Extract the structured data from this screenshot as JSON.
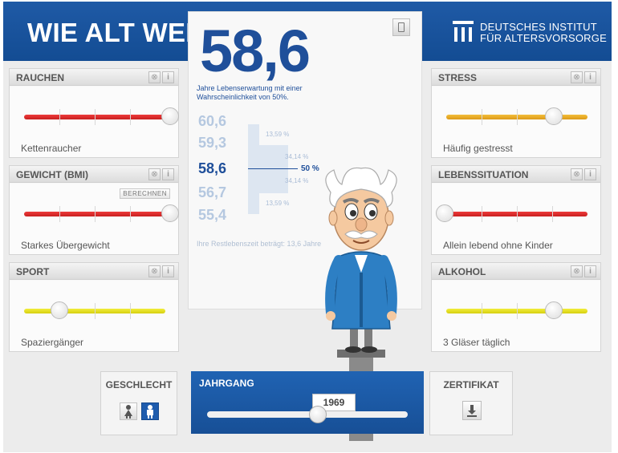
{
  "header": {
    "title": "WIE ALT WERDEN SIE?",
    "org_line1": "DEUTSCHES INSTITUT",
    "org_line2": "FÜR ALTERSVORSORGE",
    "logo_icon": "dia-logo-icon"
  },
  "panels": {
    "rauchen": {
      "title": "RAUCHEN",
      "value": "Kettenraucher",
      "level": 1.0,
      "color": "#dd2e2e"
    },
    "gewicht": {
      "title": "GEWICHT (BMI)",
      "value": "Starkes Übergewicht",
      "level": 1.0,
      "color": "#dd2e2e",
      "calc_label": "BERECHNEN"
    },
    "sport": {
      "title": "SPORT",
      "value": "Spaziergänger",
      "level": 0.25,
      "color": "#e8e322"
    },
    "stress": {
      "title": "STRESS",
      "value": "Häufig gestresst",
      "level": 0.85,
      "color": "#eab02e"
    },
    "lebenssituation": {
      "title": "LEBENSSITUATION",
      "value": "Allein lebend ohne Kinder",
      "level": 0.0,
      "color": "#dd2e2e"
    },
    "alkohol": {
      "title": "ALKOHOL",
      "value": "3 Gläser täglich",
      "level": 0.85,
      "color": "#e8e322"
    }
  },
  "center": {
    "life_expectancy": "58,6",
    "description": "Jahre Lebenserwartung mit einer Wahrscheinlichkeit von 50%.",
    "distribution": [
      {
        "age": "60,6",
        "pct": "13,59 %"
      },
      {
        "age": "59,3",
        "pct": "34,14 %"
      },
      {
        "age": "58,6",
        "pct": "50 %"
      },
      {
        "age": "56,7",
        "pct": "34,14 %"
      },
      {
        "age": "55,4",
        "pct": "13,59 %"
      }
    ],
    "remaining": "Ihre Restlebenszeit beträgt: 13,6 Jahre"
  },
  "bottom": {
    "geschlecht_label": "GESCHLECHT",
    "jahrgang_label": "JAHRGANG",
    "jahrgang_value": "1969",
    "jahrgang_level": 0.55,
    "zertifikat_label": "ZERTIFIKAT"
  }
}
